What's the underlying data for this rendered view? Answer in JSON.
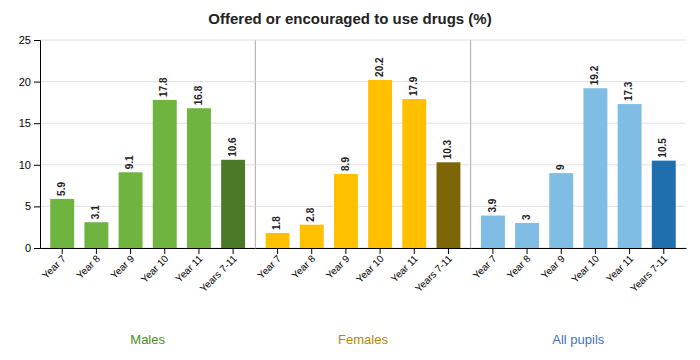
{
  "chart_data": {
    "type": "bar",
    "title": "Offered or encouraged to use drugs (%)",
    "categories": [
      "Year 7",
      "Year 8",
      "Year 9",
      "Year 10",
      "Year 11",
      "Years 7-11"
    ],
    "series": [
      {
        "name": "Males",
        "color": "#4A9020",
        "colors": [
          "#6EB43F",
          "#6EB43F",
          "#6EB43F",
          "#6EB43F",
          "#6EB43F",
          "#4A7A28"
        ],
        "values": [
          5.9,
          3.1,
          9.1,
          17.8,
          16.8,
          10.6
        ]
      },
      {
        "name": "Females",
        "color": "#B8860B",
        "colors": [
          "#FFC000",
          "#FFC000",
          "#FFC000",
          "#FFC000",
          "#FFC000",
          "#7D6608"
        ],
        "values": [
          1.8,
          2.8,
          8.9,
          20.2,
          17.9,
          10.3
        ]
      },
      {
        "name": "All pupils",
        "color": "#4472C4",
        "colors": [
          "#7FBDE4",
          "#7FBDE4",
          "#7FBDE4",
          "#7FBDE4",
          "#7FBDE4",
          "#1F6FAE"
        ],
        "values": [
          3.9,
          3.0,
          9.0,
          19.2,
          17.3,
          10.5
        ]
      }
    ],
    "ylim": [
      0,
      25
    ],
    "yticks": [
      0,
      5,
      10,
      15,
      20,
      25
    ],
    "grid": true,
    "data_labels": true
  }
}
